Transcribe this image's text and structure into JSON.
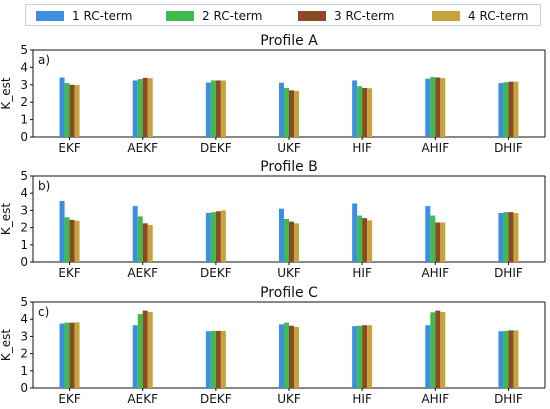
{
  "legend": {
    "items": [
      {
        "label": "1 RC-term",
        "color": "#3d8ee0"
      },
      {
        "label": "2 RC-term",
        "color": "#3dbb4f"
      },
      {
        "label": "3 RC-term",
        "color": "#8a4a25"
      },
      {
        "label": "4 RC-term",
        "color": "#c8a23a"
      }
    ]
  },
  "chart_data": [
    {
      "type": "bar",
      "title": "Profile A",
      "panel_tag": "a)",
      "ylabel": "K_est",
      "ylim": [
        0,
        5
      ],
      "yticks": [
        "0",
        "1",
        "2",
        "3",
        "4",
        "5"
      ],
      "categories": [
        "EKF",
        "AEKF",
        "DEKF",
        "UKF",
        "HIF",
        "AHIF",
        "DHIF"
      ],
      "series": [
        {
          "name": "1 RC-term",
          "values": [
            3.42,
            3.25,
            3.13,
            3.12,
            3.25,
            3.35,
            3.1
          ]
        },
        {
          "name": "2 RC-term",
          "values": [
            3.1,
            3.33,
            3.25,
            2.82,
            2.92,
            3.45,
            3.15
          ]
        },
        {
          "name": "3 RC-term",
          "values": [
            3.0,
            3.4,
            3.25,
            2.68,
            2.82,
            3.42,
            3.18
          ]
        },
        {
          "name": "4 RC-term",
          "values": [
            2.98,
            3.38,
            3.25,
            2.65,
            2.8,
            3.38,
            3.18
          ]
        }
      ]
    },
    {
      "type": "bar",
      "title": "Profile B",
      "panel_tag": "b)",
      "ylabel": "K_est",
      "ylim": [
        0,
        5
      ],
      "yticks": [
        "0",
        "1",
        "2",
        "3",
        "4",
        "5"
      ],
      "categories": [
        "EKF",
        "AEKF",
        "DEKF",
        "UKF",
        "HIF",
        "AHIF",
        "DHIF"
      ],
      "series": [
        {
          "name": "1 RC-term",
          "values": [
            3.55,
            3.25,
            2.85,
            3.1,
            3.4,
            3.25,
            2.85
          ]
        },
        {
          "name": "2 RC-term",
          "values": [
            2.6,
            2.65,
            2.9,
            2.5,
            2.7,
            2.7,
            2.9
          ]
        },
        {
          "name": "3 RC-term",
          "values": [
            2.45,
            2.25,
            2.95,
            2.35,
            2.55,
            2.3,
            2.9
          ]
        },
        {
          "name": "4 RC-term",
          "values": [
            2.4,
            2.15,
            3.0,
            2.25,
            2.42,
            2.3,
            2.85
          ]
        }
      ]
    },
    {
      "type": "bar",
      "title": "Profile C",
      "panel_tag": "c)",
      "ylabel": "K_est",
      "ylim": [
        0,
        5
      ],
      "yticks": [
        "0",
        "1",
        "2",
        "3",
        "4",
        "5"
      ],
      "categories": [
        "EKF",
        "AEKF",
        "DEKF",
        "UKF",
        "HIF",
        "AHIF",
        "DHIF"
      ],
      "series": [
        {
          "name": "1 RC-term",
          "values": [
            3.75,
            3.65,
            3.3,
            3.7,
            3.6,
            3.65,
            3.3
          ]
        },
        {
          "name": "2 RC-term",
          "values": [
            3.8,
            4.3,
            3.32,
            3.8,
            3.62,
            4.4,
            3.32
          ]
        },
        {
          "name": "3 RC-term",
          "values": [
            3.8,
            4.5,
            3.32,
            3.62,
            3.65,
            4.5,
            3.35
          ]
        },
        {
          "name": "4 RC-term",
          "values": [
            3.82,
            4.42,
            3.32,
            3.55,
            3.65,
            4.42,
            3.35
          ]
        }
      ]
    }
  ]
}
